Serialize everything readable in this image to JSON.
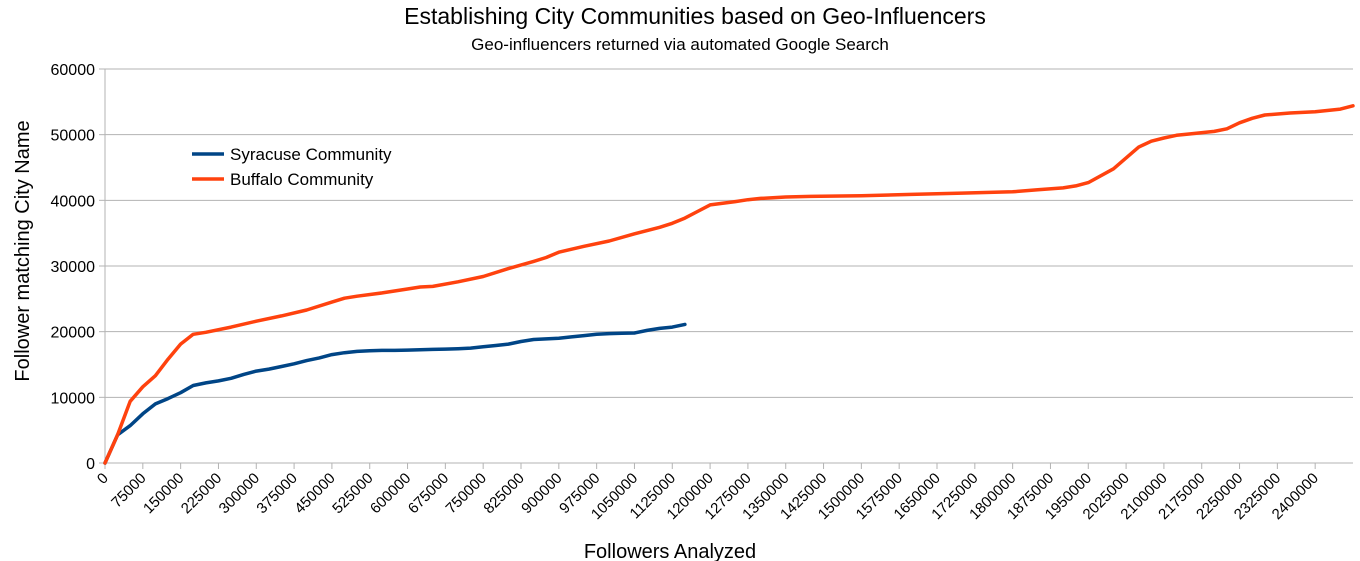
{
  "chart_data": {
    "type": "line",
    "title": "Establishing City Communities based on Geo-Influencers",
    "subtitle": "Geo-influencers returned via automated Google Search",
    "xlabel": "Followers Analyzed",
    "ylabel": "Follower matching City Name",
    "xlim": [
      0,
      2475000
    ],
    "ylim": [
      0,
      60000
    ],
    "y_ticks": [
      0,
      10000,
      20000,
      30000,
      40000,
      50000,
      60000
    ],
    "x_ticks": [
      0,
      75000,
      150000,
      225000,
      300000,
      375000,
      450000,
      525000,
      600000,
      675000,
      750000,
      825000,
      900000,
      975000,
      1050000,
      1125000,
      1200000,
      1275000,
      1350000,
      1425000,
      1500000,
      1575000,
      1650000,
      1725000,
      1800000,
      1875000,
      1950000,
      2025000,
      2100000,
      2175000,
      2250000,
      2325000,
      2400000
    ],
    "grid": "horizontal",
    "legend_position": "top-left",
    "series": [
      {
        "name": "Syracuse Community",
        "color": "#004586",
        "x": [
          0,
          25000,
          50000,
          75000,
          100000,
          125000,
          150000,
          175000,
          200000,
          225000,
          250000,
          275000,
          300000,
          325000,
          350000,
          375000,
          400000,
          425000,
          450000,
          475000,
          500000,
          525000,
          550000,
          575000,
          600000,
          625000,
          650000,
          675000,
          700000,
          725000,
          750000,
          775000,
          800000,
          825000,
          850000,
          875000,
          900000,
          925000,
          950000,
          975000,
          1000000,
          1025000,
          1050000,
          1075000,
          1100000,
          1125000,
          1150000
        ],
        "y": [
          0,
          4300,
          5700,
          7500,
          9000,
          9800,
          10700,
          11800,
          12200,
          12500,
          12900,
          13500,
          14000,
          14300,
          14700,
          15100,
          15600,
          16000,
          16500,
          16800,
          17000,
          17100,
          17150,
          17150,
          17200,
          17250,
          17300,
          17350,
          17400,
          17500,
          17700,
          17900,
          18100,
          18500,
          18800,
          18900,
          19000,
          19200,
          19400,
          19600,
          19700,
          19750,
          19800,
          20200,
          20500,
          20700,
          21100
        ]
      },
      {
        "name": "Buffalo Community",
        "color": "#ff420e",
        "x": [
          0,
          25000,
          50000,
          75000,
          100000,
          125000,
          150000,
          175000,
          200000,
          250000,
          300000,
          350000,
          400000,
          450000,
          475000,
          500000,
          550000,
          600000,
          625000,
          650000,
          700000,
          750000,
          800000,
          850000,
          875000,
          900000,
          950000,
          1000000,
          1050000,
          1100000,
          1125000,
          1150000,
          1175000,
          1200000,
          1250000,
          1275000,
          1300000,
          1350000,
          1400000,
          1500000,
          1600000,
          1700000,
          1800000,
          1850000,
          1900000,
          1925000,
          1950000,
          2000000,
          2050000,
          2075000,
          2100000,
          2125000,
          2150000,
          2200000,
          2225000,
          2250000,
          2275000,
          2300000,
          2350000,
          2400000,
          2450000,
          2475000
        ],
        "y": [
          0,
          4300,
          9400,
          11600,
          13300,
          15800,
          18100,
          19600,
          19900,
          20700,
          21600,
          22400,
          23300,
          24500,
          25100,
          25400,
          25900,
          26500,
          26800,
          26900,
          27600,
          28400,
          29600,
          30700,
          31300,
          32100,
          33000,
          33800,
          34900,
          35900,
          36500,
          37300,
          38300,
          39300,
          39800,
          40100,
          40300,
          40500,
          40600,
          40700,
          40900,
          41100,
          41300,
          41600,
          41900,
          42200,
          42700,
          44800,
          48100,
          49000,
          49500,
          49900,
          50100,
          50500,
          50900,
          51800,
          52500,
          53000,
          53300,
          53500,
          53900,
          54400
        ]
      }
    ]
  }
}
